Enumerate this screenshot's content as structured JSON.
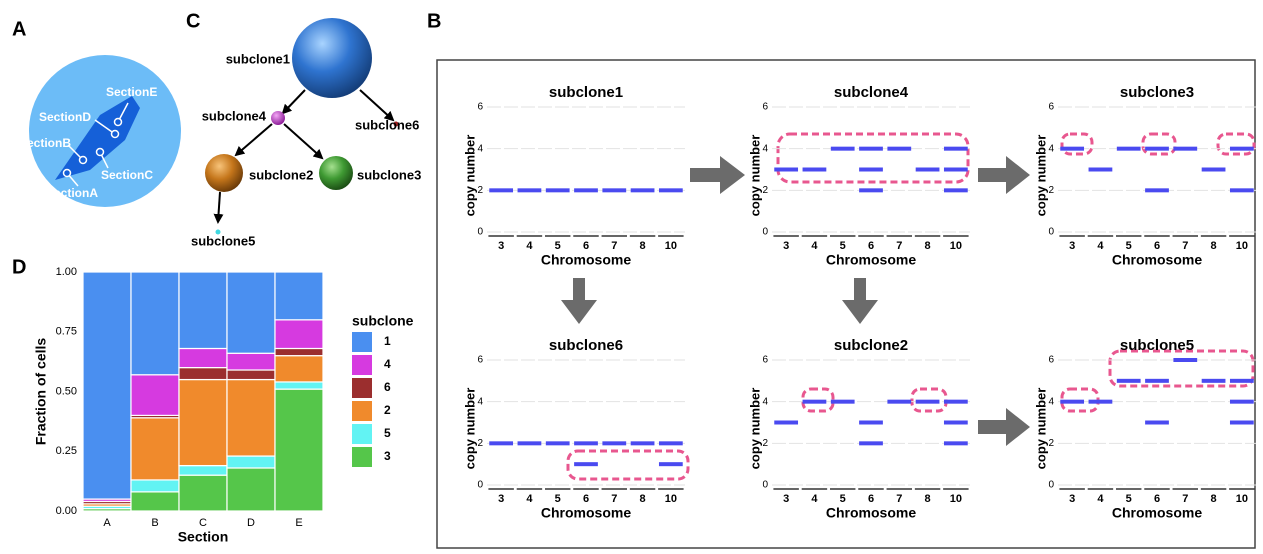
{
  "panel_labels": [
    "A",
    "B",
    "C",
    "D"
  ],
  "tissue": {
    "sections": [
      "SectionA",
      "SectionB",
      "SectionC",
      "SectionD",
      "SectionE"
    ]
  },
  "tree": {
    "nodes": [
      {
        "label": "subclone1"
      },
      {
        "label": "subclone4"
      },
      {
        "label": "subclone6"
      },
      {
        "label": "subclone2"
      },
      {
        "label": "subclone3"
      },
      {
        "label": "subclone5"
      }
    ]
  },
  "chart_data": [
    {
      "type": "stacked-bar",
      "x_label": "Section",
      "y_label": "Fraction of cells",
      "categories": [
        "A",
        "B",
        "C",
        "D",
        "E"
      ],
      "ylim": [
        0,
        1
      ],
      "yticks": [
        {
          "value": 0,
          "label": "0.00"
        },
        {
          "value": 0.25,
          "label": "0.25"
        },
        {
          "value": 0.5,
          "label": "0.50"
        },
        {
          "value": 0.75,
          "label": "0.75"
        },
        {
          "value": 1,
          "label": "1.00"
        }
      ],
      "legend_title": "subclone",
      "series": [
        {
          "name": "3",
          "color": "#55c64a",
          "values": [
            0.01,
            0.08,
            0.15,
            0.18,
            0.51
          ]
        },
        {
          "name": "5",
          "color": "#62f3f3",
          "values": [
            0.01,
            0.05,
            0.04,
            0.05,
            0.03
          ]
        },
        {
          "name": "2",
          "color": "#f08a2c",
          "values": [
            0.01,
            0.26,
            0.36,
            0.32,
            0.11
          ]
        },
        {
          "name": "6",
          "color": "#9b2e2e",
          "values": [
            0.01,
            0.01,
            0.05,
            0.04,
            0.03
          ]
        },
        {
          "name": "4",
          "color": "#d63ae0",
          "values": [
            0.01,
            0.17,
            0.08,
            0.07,
            0.12
          ]
        },
        {
          "name": "1",
          "color": "#4a8ff0",
          "values": [
            0.95,
            0.43,
            0.32,
            0.34,
            0.2
          ]
        }
      ]
    },
    {
      "type": "segment",
      "title": "subclone1",
      "x_label": "Chromosome",
      "y_label": "copy number",
      "categories": [
        "3",
        "4",
        "5",
        "6",
        "7",
        "8",
        "10"
      ],
      "ylim": [
        0,
        6
      ],
      "yticks": [
        0,
        2,
        4,
        6
      ],
      "series": [
        {
          "color": "#4a4af0",
          "values": [
            2,
            2,
            2,
            2,
            2,
            2,
            2
          ]
        }
      ]
    },
    {
      "type": "segment",
      "title": "subclone4",
      "x_label": "Chromosome",
      "y_label": "copy number",
      "categories": [
        "3",
        "4",
        "5",
        "6",
        "7",
        "8",
        "10"
      ],
      "ylim": [
        0,
        6
      ],
      "yticks": [
        0,
        2,
        4,
        6
      ],
      "series": [
        {
          "color": "#4a4af0",
          "values": [
            null,
            null,
            4,
            4,
            4,
            null,
            4
          ]
        },
        {
          "color": "#4a4af0",
          "values": [
            3,
            3,
            null,
            3,
            null,
            3,
            3
          ]
        },
        {
          "color": "#4a4af0",
          "values": [
            null,
            null,
            null,
            2,
            null,
            null,
            2
          ]
        }
      ]
    },
    {
      "type": "segment",
      "title": "subclone3",
      "x_label": "Chromosome",
      "y_label": "copy number",
      "categories": [
        "3",
        "4",
        "5",
        "6",
        "7",
        "8",
        "10"
      ],
      "ylim": [
        0,
        6
      ],
      "yticks": [
        0,
        2,
        4,
        6
      ],
      "series": [
        {
          "color": "#4a4af0",
          "values": [
            4,
            null,
            4,
            4,
            4,
            null,
            4
          ]
        },
        {
          "color": "#4a4af0",
          "values": [
            null,
            3,
            null,
            null,
            null,
            3,
            null
          ]
        },
        {
          "color": "#4a4af0",
          "values": [
            null,
            null,
            null,
            2,
            null,
            null,
            2
          ]
        }
      ]
    },
    {
      "type": "segment",
      "title": "subclone6",
      "x_label": "Chromosome",
      "y_label": "copy number",
      "categories": [
        "3",
        "4",
        "5",
        "6",
        "7",
        "8",
        "10"
      ],
      "ylim": [
        0,
        6
      ],
      "yticks": [
        0,
        2,
        4,
        6
      ],
      "series": [
        {
          "color": "#4a4af0",
          "values": [
            2,
            2,
            2,
            2,
            2,
            2,
            2
          ]
        },
        {
          "color": "#4a4af0",
          "values": [
            null,
            null,
            null,
            1,
            null,
            null,
            1
          ]
        }
      ]
    },
    {
      "type": "segment",
      "title": "subclone2",
      "x_label": "Chromosome",
      "y_label": "copy number",
      "categories": [
        "3",
        "4",
        "5",
        "6",
        "7",
        "8",
        "10"
      ],
      "ylim": [
        0,
        6
      ],
      "yticks": [
        0,
        2,
        4,
        6
      ],
      "series": [
        {
          "color": "#4a4af0",
          "values": [
            null,
            4,
            4,
            null,
            4,
            4,
            4
          ]
        },
        {
          "color": "#4a4af0",
          "values": [
            3,
            null,
            null,
            3,
            null,
            null,
            3
          ]
        },
        {
          "color": "#4a4af0",
          "values": [
            null,
            null,
            null,
            2,
            null,
            null,
            2
          ]
        }
      ]
    },
    {
      "type": "segment",
      "title": "subclone5",
      "x_label": "Chromosome",
      "y_label": "copy number",
      "categories": [
        "3",
        "4",
        "5",
        "6",
        "7",
        "8",
        "10"
      ],
      "ylim": [
        0,
        6
      ],
      "yticks": [
        0,
        2,
        4,
        6
      ],
      "series": [
        {
          "color": "#4a4af0",
          "values": [
            null,
            null,
            null,
            null,
            6,
            null,
            null
          ]
        },
        {
          "color": "#4a4af0",
          "values": [
            null,
            null,
            5,
            5,
            null,
            5,
            5
          ]
        },
        {
          "color": "#4a4af0",
          "values": [
            4,
            4,
            null,
            null,
            null,
            null,
            4
          ]
        },
        {
          "color": "#4a4af0",
          "values": [
            null,
            null,
            null,
            3,
            null,
            null,
            3
          ]
        }
      ]
    }
  ]
}
